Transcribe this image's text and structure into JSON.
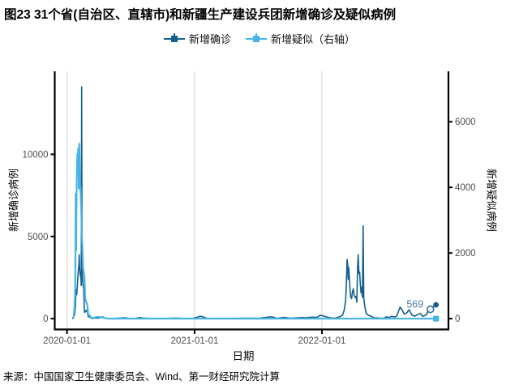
{
  "title": "图23 31个省(自治区、直辖市)和新疆生产建设兵团新增确诊及疑似病例",
  "source": "来源：中国国家卫生健康委员会、Wind、第一财经研究院计算",
  "legend": {
    "items": [
      {
        "label": "新增确诊",
        "color": "#16608d"
      },
      {
        "label": "新增疑似（右轴）",
        "color": "#45b4e6"
      }
    ]
  },
  "colors": {
    "confirmed": "#16608d",
    "suspected": "#45b4e6",
    "tick_label": "#4d4d4d",
    "axis_line": "#000000",
    "gridline": "#d6d6d6",
    "annotation": "#4e7da9",
    "background": "#ffffff"
  },
  "chart_data": {
    "type": "line",
    "x_axis": {
      "title": "日期",
      "ticks": [
        "2020-01-01",
        "2021-01-01",
        "2022-01-01"
      ],
      "range": [
        "2019-12-27",
        "2022-12-30"
      ]
    },
    "left_axis": {
      "title": "新增确诊病例",
      "ticks": [
        0,
        5000,
        10000
      ],
      "range": [
        0,
        15000
      ]
    },
    "right_axis": {
      "title": "新增疑似病例",
      "ticks": [
        0,
        2000,
        4000,
        6000
      ],
      "range": [
        0,
        7500
      ]
    },
    "grid": "vertical-only",
    "legend_position": "top-center",
    "annotation": {
      "text": "569",
      "date": "2022-11-08",
      "value": 569,
      "series": "新增确诊",
      "marker": "open-circle"
    },
    "series": [
      {
        "name": "新增确诊",
        "axis": "left",
        "color": "#16608d",
        "marker_end": "circle",
        "data": [
          [
            "2020-01-17",
            17
          ],
          [
            "2020-01-19",
            51
          ],
          [
            "2020-01-21",
            149
          ],
          [
            "2020-01-23",
            259
          ],
          [
            "2020-01-25",
            688
          ],
          [
            "2020-01-27",
            1771
          ],
          [
            "2020-01-29",
            1459
          ],
          [
            "2020-01-31",
            2102
          ],
          [
            "2020-02-02",
            2829
          ],
          [
            "2020-02-04",
            3235
          ],
          [
            "2020-02-05",
            3887
          ],
          [
            "2020-02-06",
            3143
          ],
          [
            "2020-02-08",
            2656
          ],
          [
            "2020-02-10",
            2478
          ],
          [
            "2020-02-11",
            2015
          ],
          [
            "2020-02-12",
            14108
          ],
          [
            "2020-02-13",
            5090
          ],
          [
            "2020-02-14",
            2641
          ],
          [
            "2020-02-16",
            2048
          ],
          [
            "2020-02-18",
            1886
          ],
          [
            "2020-02-20",
            394
          ],
          [
            "2020-02-22",
            397
          ],
          [
            "2020-02-25",
            508
          ],
          [
            "2020-02-28",
            427
          ],
          [
            "2020-03-02",
            125
          ],
          [
            "2020-03-06",
            99
          ],
          [
            "2020-03-12",
            8
          ],
          [
            "2020-03-20",
            41
          ],
          [
            "2020-04-01",
            35
          ],
          [
            "2020-04-12",
            108
          ],
          [
            "2020-04-25",
            12
          ],
          [
            "2020-05-15",
            8
          ],
          [
            "2020-06-14",
            57
          ],
          [
            "2020-06-28",
            17
          ],
          [
            "2020-07-14",
            10
          ],
          [
            "2020-07-28",
            68
          ],
          [
            "2020-08-05",
            37
          ],
          [
            "2020-08-20",
            22
          ],
          [
            "2020-09-10",
            12
          ],
          [
            "2020-10-12",
            20
          ],
          [
            "2020-11-08",
            33
          ],
          [
            "2020-12-08",
            15
          ],
          [
            "2020-12-28",
            27
          ],
          [
            "2021-01-11",
            103
          ],
          [
            "2021-01-15",
            144
          ],
          [
            "2021-01-24",
            124
          ],
          [
            "2021-02-05",
            20
          ],
          [
            "2021-02-25",
            10
          ],
          [
            "2021-03-20",
            11
          ],
          [
            "2021-04-15",
            16
          ],
          [
            "2021-05-15",
            27
          ],
          [
            "2021-06-10",
            24
          ],
          [
            "2021-07-05",
            23
          ],
          [
            "2021-08-02",
            98
          ],
          [
            "2021-08-10",
            111
          ],
          [
            "2021-08-25",
            20
          ],
          [
            "2021-09-14",
            80
          ],
          [
            "2021-10-02",
            26
          ],
          [
            "2021-10-26",
            59
          ],
          [
            "2021-11-06",
            74
          ],
          [
            "2021-11-15",
            52
          ],
          [
            "2021-12-02",
            94
          ],
          [
            "2021-12-18",
            77
          ],
          [
            "2021-12-27",
            209
          ],
          [
            "2022-01-04",
            175
          ],
          [
            "2022-01-15",
            104
          ],
          [
            "2022-01-28",
            39
          ],
          [
            "2022-02-10",
            45
          ],
          [
            "2022-02-20",
            107
          ],
          [
            "2022-03-01",
            214
          ],
          [
            "2022-03-06",
            526
          ],
          [
            "2022-03-10",
            1100
          ],
          [
            "2022-03-12",
            2125
          ],
          [
            "2022-03-14",
            3602
          ],
          [
            "2022-03-16",
            3290
          ],
          [
            "2022-03-17",
            2388
          ],
          [
            "2022-03-19",
            3122
          ],
          [
            "2022-03-21",
            2281
          ],
          [
            "2022-03-24",
            1366
          ],
          [
            "2022-03-27",
            1219
          ],
          [
            "2022-03-29",
            1565
          ],
          [
            "2022-04-01",
            1827
          ],
          [
            "2022-04-03",
            1455
          ],
          [
            "2022-04-06",
            1284
          ],
          [
            "2022-04-09",
            1350
          ],
          [
            "2022-04-11",
            994
          ],
          [
            "2022-04-13",
            2999
          ],
          [
            "2022-04-15",
            3896
          ],
          [
            "2022-04-17",
            2742
          ],
          [
            "2022-04-19",
            2830
          ],
          [
            "2022-04-21",
            2119
          ],
          [
            "2022-04-23",
            1566
          ],
          [
            "2022-04-25",
            1908
          ],
          [
            "2022-04-27",
            1292
          ],
          [
            "2022-04-29",
            5647
          ],
          [
            "2022-05-01",
            1211
          ],
          [
            "2022-05-04",
            745
          ],
          [
            "2022-05-08",
            322
          ],
          [
            "2022-05-14",
            211
          ],
          [
            "2022-05-22",
            141
          ],
          [
            "2022-05-30",
            54
          ],
          [
            "2022-06-08",
            45
          ],
          [
            "2022-06-18",
            25
          ],
          [
            "2022-06-28",
            34
          ],
          [
            "2022-07-06",
            112
          ],
          [
            "2022-07-12",
            65
          ],
          [
            "2022-07-20",
            148
          ],
          [
            "2022-07-28",
            102
          ],
          [
            "2022-08-03",
            136
          ],
          [
            "2022-08-08",
            420
          ],
          [
            "2022-08-13",
            700
          ],
          [
            "2022-08-18",
            566
          ],
          [
            "2022-08-25",
            280
          ],
          [
            "2022-09-01",
            349
          ],
          [
            "2022-09-08",
            540
          ],
          [
            "2022-09-16",
            210
          ],
          [
            "2022-09-24",
            160
          ],
          [
            "2022-10-02",
            240
          ],
          [
            "2022-10-10",
            320
          ],
          [
            "2022-10-16",
            150
          ],
          [
            "2022-10-22",
            180
          ],
          [
            "2022-10-28",
            250
          ],
          [
            "2022-11-01",
            470
          ],
          [
            "2022-11-04",
            424
          ],
          [
            "2022-11-08",
            569
          ],
          [
            "2022-11-16",
            700
          ],
          [
            "2022-11-24",
            843
          ]
        ]
      },
      {
        "name": "新增疑似",
        "axis": "right",
        "color": "#45b4e6",
        "marker_end": "square",
        "data": [
          [
            "2020-01-20",
            54
          ],
          [
            "2020-01-22",
            257
          ],
          [
            "2020-01-24",
            680
          ],
          [
            "2020-01-25",
            1309
          ],
          [
            "2020-01-26",
            3806
          ],
          [
            "2020-01-27",
            2077
          ],
          [
            "2020-01-28",
            3248
          ],
          [
            "2020-01-29",
            4148
          ],
          [
            "2020-01-30",
            4812
          ],
          [
            "2020-01-31",
            5019
          ],
          [
            "2020-02-01",
            4562
          ],
          [
            "2020-02-02",
            5173
          ],
          [
            "2020-02-03",
            5072
          ],
          [
            "2020-02-04",
            3971
          ],
          [
            "2020-02-05",
            5328
          ],
          [
            "2020-02-06",
            4833
          ],
          [
            "2020-02-07",
            4214
          ],
          [
            "2020-02-08",
            3916
          ],
          [
            "2020-02-09",
            4008
          ],
          [
            "2020-02-10",
            3536
          ],
          [
            "2020-02-11",
            3342
          ],
          [
            "2020-02-12",
            2807
          ],
          [
            "2020-02-13",
            2450
          ],
          [
            "2020-02-14",
            2277
          ],
          [
            "2020-02-16",
            1563
          ],
          [
            "2020-02-18",
            1432
          ],
          [
            "2020-02-20",
            1277
          ],
          [
            "2020-02-22",
            630
          ],
          [
            "2020-02-25",
            508
          ],
          [
            "2020-02-28",
            452
          ],
          [
            "2020-03-02",
            129
          ],
          [
            "2020-03-06",
            102
          ],
          [
            "2020-03-10",
            31
          ],
          [
            "2020-03-16",
            21
          ],
          [
            "2020-03-22",
            39
          ],
          [
            "2020-03-28",
            58
          ],
          [
            "2020-04-05",
            42
          ],
          [
            "2020-04-15",
            27
          ],
          [
            "2020-04-25",
            3
          ],
          [
            "2020-05-10",
            2
          ],
          [
            "2020-06-01",
            4
          ],
          [
            "2020-07-01",
            1
          ],
          [
            "2020-09-01",
            2
          ],
          [
            "2021-01-01",
            1
          ],
          [
            "2021-06-01",
            0
          ],
          [
            "2022-01-01",
            0
          ],
          [
            "2022-06-01",
            0
          ],
          [
            "2022-11-24",
            0
          ]
        ]
      }
    ]
  }
}
